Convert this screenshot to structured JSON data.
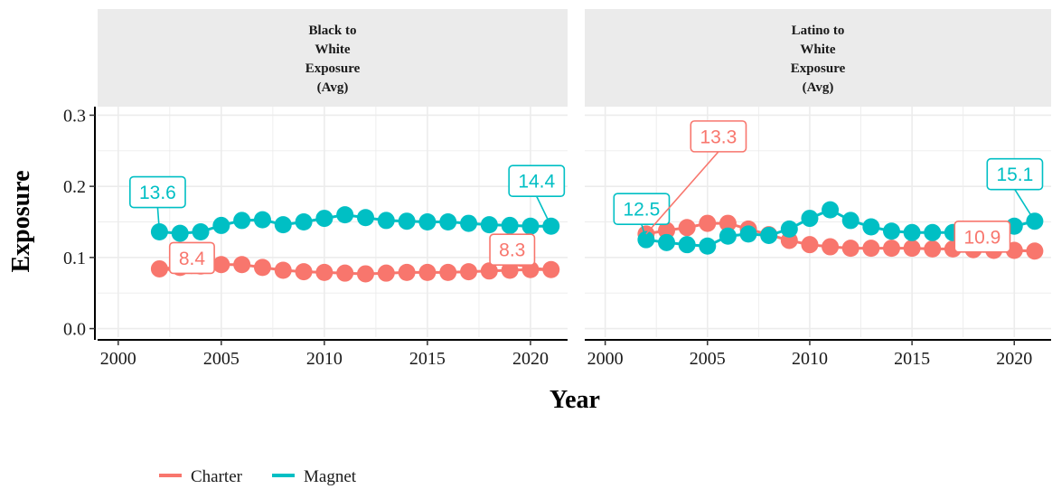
{
  "chart_data": {
    "type": "line",
    "xlabel": "Year",
    "ylabel": "Exposure",
    "xlim": [
      1999,
      2021.8
    ],
    "ylim": [
      -0.012,
      0.312
    ],
    "xticks": [
      "2000",
      "2005",
      "2010",
      "2015",
      "2020"
    ],
    "yticks": [
      "0.0",
      "0.1",
      "0.2",
      "0.3"
    ],
    "grid": true,
    "legend": {
      "position": "bottom-left",
      "entries": [
        "Charter",
        "Magnet"
      ]
    },
    "colors": {
      "Charter": "#F8766D",
      "Magnet": "#00BFC4"
    },
    "panels": [
      {
        "title_lines": [
          "Black to",
          "White",
          "Exposure",
          "(Avg)"
        ],
        "series": [
          {
            "name": "Charter",
            "x": [
              2002,
              2003,
              2004,
              2005,
              2006,
              2007,
              2008,
              2009,
              2010,
              2011,
              2012,
              2013,
              2014,
              2015,
              2016,
              2017,
              2018,
              2019,
              2020,
              2021
            ],
            "y": [
              0.084,
              0.086,
              0.088,
              0.09,
              0.09,
              0.086,
              0.082,
              0.08,
              0.079,
              0.078,
              0.077,
              0.078,
              0.079,
              0.079,
              0.079,
              0.08,
              0.081,
              0.082,
              0.083,
              0.083
            ]
          },
          {
            "name": "Magnet",
            "x": [
              2002,
              2003,
              2004,
              2005,
              2006,
              2007,
              2008,
              2009,
              2010,
              2011,
              2012,
              2013,
              2014,
              2015,
              2016,
              2017,
              2018,
              2019,
              2020,
              2021
            ],
            "y": [
              0.136,
              0.134,
              0.136,
              0.145,
              0.152,
              0.153,
              0.146,
              0.15,
              0.155,
              0.16,
              0.156,
              0.152,
              0.151,
              0.15,
              0.15,
              0.148,
              0.146,
              0.145,
              0.144,
              0.144
            ]
          }
        ],
        "labels": [
          {
            "text": "13.6",
            "series": "Magnet",
            "x": 2002,
            "y": 0.136
          },
          {
            "text": "8.4",
            "series": "Charter",
            "x": 2002,
            "y": 0.084
          },
          {
            "text": "14.4",
            "series": "Magnet",
            "x": 2021,
            "y": 0.144
          },
          {
            "text": "8.3",
            "series": "Charter",
            "x": 2021,
            "y": 0.083
          }
        ]
      },
      {
        "title_lines": [
          "Latino to",
          "White",
          "Exposure",
          "(Avg)"
        ],
        "series": [
          {
            "name": "Charter",
            "x": [
              2002,
              2003,
              2004,
              2005,
              2006,
              2007,
              2008,
              2009,
              2010,
              2011,
              2012,
              2013,
              2014,
              2015,
              2016,
              2017,
              2018,
              2019,
              2020,
              2021
            ],
            "y": [
              0.133,
              0.138,
              0.142,
              0.148,
              0.148,
              0.14,
              0.132,
              0.124,
              0.118,
              0.115,
              0.113,
              0.113,
              0.113,
              0.113,
              0.112,
              0.112,
              0.111,
              0.11,
              0.11,
              0.109
            ]
          },
          {
            "name": "Magnet",
            "x": [
              2002,
              2003,
              2004,
              2005,
              2006,
              2007,
              2008,
              2009,
              2010,
              2011,
              2012,
              2013,
              2014,
              2015,
              2016,
              2017,
              2018,
              2019,
              2020,
              2021
            ],
            "y": [
              0.125,
              0.121,
              0.118,
              0.116,
              0.13,
              0.133,
              0.131,
              0.14,
              0.155,
              0.167,
              0.152,
              0.143,
              0.137,
              0.135,
              0.135,
              0.135,
              0.136,
              0.137,
              0.144,
              0.151
            ]
          }
        ],
        "labels": [
          {
            "text": "12.5",
            "series": "Magnet",
            "x": 2002,
            "y": 0.125
          },
          {
            "text": "13.3",
            "series": "Charter",
            "x": 2002,
            "y": 0.133
          },
          {
            "text": "15.1",
            "series": "Magnet",
            "x": 2021,
            "y": 0.151
          },
          {
            "text": "10.9",
            "series": "Charter",
            "x": 2021,
            "y": 0.109
          }
        ]
      }
    ]
  }
}
